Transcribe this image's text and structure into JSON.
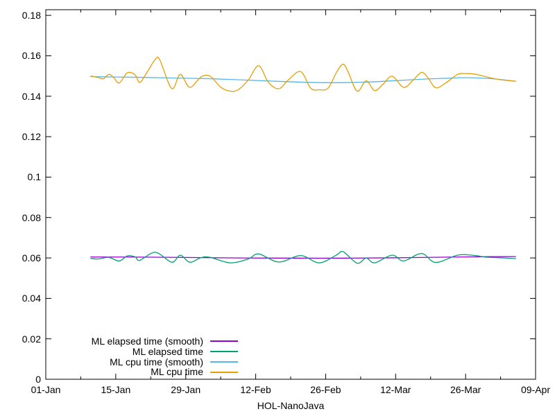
{
  "chart_data": {
    "type": "line",
    "title": "",
    "xlabel": "HOL-NanoJava",
    "ylabel": "",
    "background": "#ffffff",
    "border_color": "#000000",
    "grid": false,
    "legend_position": "inside bottom-left",
    "x_axis": {
      "unit": "days since 01-Jan",
      "range_days": [
        0,
        98
      ],
      "major_tick_days": [
        0,
        14,
        28,
        42,
        56,
        70,
        84,
        98
      ],
      "major_tick_labels": [
        "01-Jan",
        "15-Jan",
        "29-Jan",
        "12-Feb",
        "26-Feb",
        "12-Mar",
        "26-Mar",
        "09-Apr"
      ],
      "minor_tick_days": [
        7,
        21,
        35,
        49,
        63,
        77,
        91
      ]
    },
    "y_axis": {
      "range": [
        0,
        0.1828
      ],
      "tick_values": [
        0,
        0.02,
        0.04,
        0.06,
        0.08,
        0.1,
        0.12,
        0.14,
        0.16,
        0.18
      ],
      "tick_labels": [
        "0",
        "0.02",
        "0.04",
        "0.06",
        "0.08",
        "0.1",
        "0.12",
        "0.14",
        "0.16",
        "0.18"
      ]
    },
    "series": [
      {
        "name": "ML elapsed time (smooth)",
        "color": "#9400d3",
        "points": [
          [
            9,
            0.0605
          ],
          [
            20,
            0.0604
          ],
          [
            30,
            0.0602
          ],
          [
            40,
            0.06
          ],
          [
            50,
            0.0599
          ],
          [
            60,
            0.0599
          ],
          [
            70,
            0.0601
          ],
          [
            80,
            0.0604
          ],
          [
            87,
            0.0606
          ],
          [
            94,
            0.0607
          ]
        ]
      },
      {
        "name": "ML elapsed time",
        "color": "#009e73",
        "points": [
          [
            9,
            0.0598
          ],
          [
            10.5,
            0.0595
          ],
          [
            12.6,
            0.0603
          ],
          [
            14.7,
            0.0585
          ],
          [
            16.3,
            0.061
          ],
          [
            17.9,
            0.0605
          ],
          [
            18.8,
            0.0588
          ],
          [
            21.9,
            0.0628
          ],
          [
            25.2,
            0.0579
          ],
          [
            26.9,
            0.0614
          ],
          [
            28.8,
            0.0579
          ],
          [
            31.1,
            0.0602
          ],
          [
            32.9,
            0.0603
          ],
          [
            36.9,
            0.0576
          ],
          [
            40.5,
            0.0595
          ],
          [
            42.6,
            0.062
          ],
          [
            46.6,
            0.058
          ],
          [
            51,
            0.0612
          ],
          [
            54.7,
            0.0576
          ],
          [
            58.2,
            0.0615
          ],
          [
            59.5,
            0.0631
          ],
          [
            62.3,
            0.0574
          ],
          [
            64.1,
            0.06
          ],
          [
            65.8,
            0.0576
          ],
          [
            69.3,
            0.0614
          ],
          [
            71.6,
            0.0585
          ],
          [
            75.2,
            0.0622
          ],
          [
            78,
            0.0578
          ],
          [
            82.4,
            0.0614
          ],
          [
            85.6,
            0.0613
          ],
          [
            88,
            0.0604
          ],
          [
            90,
            0.0602
          ],
          [
            92,
            0.06
          ],
          [
            94,
            0.0597
          ]
        ]
      },
      {
        "name": "ML cpu time (smooth)",
        "color": "#56b4e9",
        "points": [
          [
            9,
            0.1497
          ],
          [
            14,
            0.1495
          ],
          [
            20,
            0.1493
          ],
          [
            26,
            0.149
          ],
          [
            32,
            0.1487
          ],
          [
            38,
            0.1482
          ],
          [
            45,
            0.1475
          ],
          [
            52,
            0.1469
          ],
          [
            58,
            0.1467
          ],
          [
            64,
            0.147
          ],
          [
            70,
            0.1477
          ],
          [
            76,
            0.1485
          ],
          [
            81,
            0.149
          ],
          [
            84,
            0.1492
          ],
          [
            87,
            0.149
          ],
          [
            90,
            0.1485
          ],
          [
            92,
            0.148
          ],
          [
            94,
            0.1474
          ]
        ]
      },
      {
        "name": "ML cpu time",
        "color": "#e69f00",
        "points": [
          [
            9,
            0.15
          ],
          [
            10.5,
            0.1493
          ],
          [
            11.5,
            0.1486
          ],
          [
            12.6,
            0.1508
          ],
          [
            13.5,
            0.1495
          ],
          [
            14.7,
            0.1466
          ],
          [
            16.3,
            0.1516
          ],
          [
            17.9,
            0.1505
          ],
          [
            18.8,
            0.1468
          ],
          [
            20.3,
            0.152
          ],
          [
            21.9,
            0.1582
          ],
          [
            22.8,
            0.158
          ],
          [
            25.2,
            0.1438
          ],
          [
            26.9,
            0.1508
          ],
          [
            28.8,
            0.1444
          ],
          [
            31.1,
            0.1496
          ],
          [
            32.9,
            0.1499
          ],
          [
            35,
            0.1445
          ],
          [
            36.9,
            0.1425
          ],
          [
            38.5,
            0.1432
          ],
          [
            40.5,
            0.148
          ],
          [
            42.6,
            0.1551
          ],
          [
            44.5,
            0.147
          ],
          [
            46.6,
            0.1437
          ],
          [
            48.5,
            0.148
          ],
          [
            51,
            0.1522
          ],
          [
            53,
            0.144
          ],
          [
            54.7,
            0.1432
          ],
          [
            56.5,
            0.144
          ],
          [
            58.2,
            0.152
          ],
          [
            59.5,
            0.1558
          ],
          [
            60.5,
            0.152
          ],
          [
            62.3,
            0.1425
          ],
          [
            64.1,
            0.1476
          ],
          [
            65.8,
            0.1428
          ],
          [
            67.5,
            0.146
          ],
          [
            69.3,
            0.1499
          ],
          [
            71.6,
            0.1444
          ],
          [
            73.5,
            0.148
          ],
          [
            75.2,
            0.1518
          ],
          [
            76.5,
            0.149
          ],
          [
            78,
            0.1442
          ],
          [
            80,
            0.1465
          ],
          [
            82.4,
            0.1508
          ],
          [
            84,
            0.1512
          ],
          [
            85.6,
            0.151
          ],
          [
            87.5,
            0.15
          ],
          [
            89.5,
            0.1488
          ],
          [
            91.5,
            0.148
          ],
          [
            94,
            0.1474
          ]
        ]
      }
    ]
  }
}
